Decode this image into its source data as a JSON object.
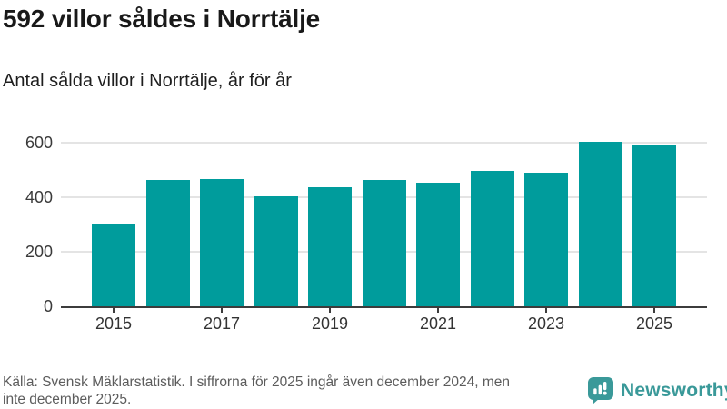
{
  "header": {
    "title": "592 villor såldes i Norrtälje",
    "subtitle": "Antal sålda villor i Norrtälje, år för år"
  },
  "chart_data": {
    "type": "bar",
    "title": "592 villor såldes i Norrtälje",
    "subtitle": "Antal sålda villor i Norrtälje, år för år",
    "categories": [
      "2015",
      "2016",
      "2017",
      "2018",
      "2019",
      "2020",
      "2021",
      "2022",
      "2023",
      "2024",
      "2025"
    ],
    "values": [
      303,
      464,
      468,
      402,
      437,
      462,
      453,
      497,
      489,
      604,
      592
    ],
    "xlabel": "",
    "ylabel": "",
    "ylim": [
      0,
      660
    ],
    "yticks": [
      0,
      200,
      400,
      600
    ],
    "xticks": [
      "2015",
      "2017",
      "2019",
      "2021",
      "2023",
      "2025"
    ],
    "grid": true,
    "legend": "none",
    "bar_color": "#009c9c"
  },
  "footer": {
    "source_lines": [
      "Källa: Svensk Mäklarstatistik. I siffrorna för 2025 ingår även december 2024, men",
      "inte december 2025."
    ],
    "brand": "Newsworthy",
    "brand_color": "#3a9999"
  }
}
